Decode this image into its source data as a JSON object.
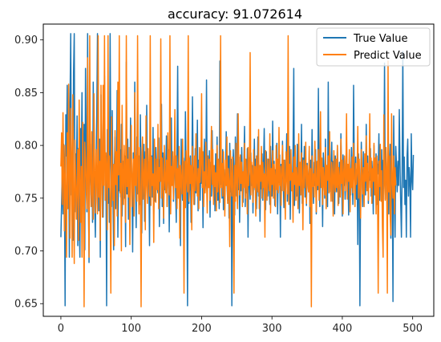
{
  "chart_data": {
    "type": "line",
    "title": "accuracy: 91.072614",
    "xlabel": "",
    "ylabel": "",
    "xlim": [
      -25,
      530
    ],
    "ylim": [
      0.638,
      0.915
    ],
    "xticks": [
      0,
      100,
      200,
      300,
      400,
      500
    ],
    "yticks": [
      0.65,
      0.7,
      0.75,
      0.8,
      0.85,
      0.9
    ],
    "ytick_labels": [
      "0.65",
      "0.70",
      "0.75",
      "0.80",
      "0.85",
      "0.90"
    ],
    "grid": false,
    "legend_position": "top-right",
    "series": [
      {
        "name": "True Value",
        "color": "#1f77b4",
        "x_start": 0,
        "x_step": 1,
        "values": [
          0.713,
          0.745,
          0.778,
          0.735,
          0.801,
          0.766,
          0.648,
          0.829,
          0.79,
          0.857,
          0.752,
          0.804,
          0.694,
          0.841,
          0.906,
          0.753,
          0.781,
          0.71,
          0.869,
          0.906,
          0.737,
          0.792,
          0.756,
          0.828,
          0.705,
          0.797,
          0.732,
          0.694,
          0.816,
          0.779,
          0.85,
          0.743,
          0.76,
          0.82,
          0.701,
          0.873,
          0.794,
          0.737,
          0.906,
          0.763,
          0.689,
          0.828,
          0.771,
          0.753,
          0.801,
          0.727,
          0.86,
          0.791,
          0.744,
          0.713,
          0.78,
          0.828,
          0.906,
          0.766,
          0.738,
          0.806,
          0.694,
          0.848,
          0.775,
          0.756,
          0.732,
          0.797,
          0.866,
          0.761,
          0.779,
          0.648,
          0.815,
          0.745,
          0.795,
          0.727,
          0.906,
          0.785,
          0.742,
          0.833,
          0.757,
          0.701,
          0.781,
          0.808,
          0.74,
          0.768,
          0.852,
          0.713,
          0.78,
          0.757,
          0.796,
          0.751,
          0.82,
          0.733,
          0.769,
          0.785,
          0.75,
          0.79,
          0.704,
          0.879,
          0.754,
          0.806,
          0.73,
          0.772,
          0.747,
          0.826,
          0.785,
          0.764,
          0.699,
          0.793,
          0.745,
          0.86,
          0.779,
          0.722,
          0.808,
          0.754,
          0.775,
          0.79,
          0.744,
          0.829,
          0.762,
          0.717,
          0.793,
          0.76,
          0.801,
          0.728,
          0.794,
          0.766,
          0.838,
          0.749,
          0.782,
          0.772,
          0.705,
          0.802,
          0.76,
          0.79,
          0.751,
          0.817,
          0.734,
          0.781,
          0.747,
          0.798,
          0.773,
          0.76,
          0.755,
          0.807,
          0.723,
          0.787,
          0.766,
          0.839,
          0.742,
          0.793,
          0.726,
          0.784,
          0.758,
          0.772,
          0.809,
          0.742,
          0.781,
          0.796,
          0.718,
          0.778,
          0.751,
          0.826,
          0.763,
          0.79,
          0.747,
          0.771,
          0.8,
          0.76,
          0.727,
          0.793,
          0.875,
          0.754,
          0.78,
          0.766,
          0.705,
          0.806,
          0.762,
          0.748,
          0.788,
          0.777,
          0.741,
          0.832,
          0.772,
          0.756,
          0.648,
          0.792,
          0.745,
          0.761,
          0.79,
          0.727,
          0.763,
          0.846,
          0.781,
          0.773,
          0.744,
          0.797,
          0.755,
          0.768,
          0.824,
          0.738,
          0.786,
          0.773,
          0.748,
          0.797,
          0.764,
          0.781,
          0.722,
          0.777,
          0.806,
          0.757,
          0.768,
          0.862,
          0.747,
          0.79,
          0.761,
          0.795,
          0.732,
          0.784,
          0.752,
          0.814,
          0.769,
          0.748,
          0.78,
          0.738,
          0.792,
          0.759,
          0.808,
          0.748,
          0.774,
          0.74,
          0.88,
          0.763,
          0.781,
          0.75,
          0.796,
          0.739,
          0.777,
          0.759,
          0.769,
          0.813,
          0.765,
          0.748,
          0.79,
          0.731,
          0.802,
          0.756,
          0.787,
          0.648,
          0.761,
          0.796,
          0.773,
          0.734,
          0.808,
          0.779,
          0.752,
          0.83,
          0.758,
          0.789,
          0.727,
          0.771,
          0.757,
          0.798,
          0.764,
          0.746,
          0.778,
          0.818,
          0.742,
          0.783,
          0.755,
          0.797,
          0.713,
          0.788,
          0.767,
          0.749,
          0.793,
          0.762,
          0.781,
          0.736,
          0.769,
          0.806,
          0.758,
          0.787,
          0.74,
          0.77,
          0.808,
          0.752,
          0.781,
          0.728,
          0.768,
          0.759,
          0.792,
          0.748,
          0.781,
          0.816,
          0.764,
          0.739,
          0.794,
          0.772,
          0.752,
          0.787,
          0.76,
          0.744,
          0.799,
          0.775,
          0.752,
          0.823,
          0.767,
          0.785,
          0.743,
          0.777,
          0.76,
          0.802,
          0.735,
          0.775,
          0.765,
          0.791,
          0.713,
          0.782,
          0.757,
          0.804,
          0.768,
          0.741,
          0.786,
          0.762,
          0.778,
          0.811,
          0.747,
          0.778,
          0.759,
          0.799,
          0.73,
          0.779,
          0.768,
          0.757,
          0.796,
          0.873,
          0.743,
          0.778,
          0.768,
          0.752,
          0.801,
          0.76,
          0.783,
          0.736,
          0.774,
          0.764,
          0.82,
          0.745,
          0.788,
          0.761,
          0.799,
          0.751,
          0.776,
          0.743,
          0.783,
          0.768,
          0.756,
          0.795,
          0.726,
          0.786,
          0.757,
          0.815,
          0.768,
          0.745,
          0.784,
          0.762,
          0.796,
          0.735,
          0.778,
          0.758,
          0.854,
          0.768,
          0.742,
          0.789,
          0.764,
          0.776,
          0.723,
          0.793,
          0.771,
          0.75,
          0.806,
          0.762,
          0.781,
          0.742,
          0.86,
          0.764,
          0.789,
          0.756,
          0.775,
          0.803,
          0.747,
          0.785,
          0.762,
          0.735,
          0.79,
          0.77,
          0.756,
          0.8,
          0.768,
          0.745,
          0.784,
          0.757,
          0.811,
          0.772,
          0.733,
          0.791,
          0.762,
          0.782,
          0.749,
          0.776,
          0.808,
          0.756,
          0.78,
          0.734,
          0.787,
          0.765,
          0.753,
          0.798,
          0.772,
          0.744,
          0.857,
          0.783,
          0.762,
          0.789,
          0.749,
          0.777,
          0.706,
          0.792,
          0.767,
          0.648,
          0.761,
          0.803,
          0.774,
          0.742,
          0.794,
          0.766,
          0.78,
          0.753,
          0.82,
          0.76,
          0.79,
          0.745,
          0.775,
          0.767,
          0.797,
          0.752,
          0.785,
          0.771,
          0.735,
          0.8,
          0.768,
          0.757,
          0.792,
          0.744,
          0.782,
          0.773,
          0.811,
          0.748,
          0.778,
          0.762,
          0.796,
          0.735,
          0.786,
          0.766,
          0.878,
          0.749,
          0.78,
          0.767,
          0.757,
          0.798,
          0.735,
          0.775,
          0.801,
          0.712,
          0.791,
          0.763,
          0.652,
          0.828,
          0.771,
          0.713,
          0.799,
          0.781,
          0.756,
          0.785,
          0.762,
          0.834,
          0.782,
          0.745,
          0.713,
          0.775,
          0.889,
          0.76,
          0.789,
          0.744,
          0.767,
          0.713,
          0.79,
          0.806,
          0.752,
          0.779,
          0.767,
          0.713,
          0.811,
          0.768,
          0.758,
          0.791
        ]
      },
      {
        "name": "Predict Value",
        "color": "#ff7f0e",
        "x_start": 0,
        "x_step": 1,
        "values": [
          0.78,
          0.812,
          0.744,
          0.831,
          0.769,
          0.719,
          0.8,
          0.755,
          0.694,
          0.812,
          0.74,
          0.858,
          0.766,
          0.712,
          0.835,
          0.789,
          0.694,
          0.848,
          0.747,
          0.688,
          0.805,
          0.771,
          0.73,
          0.76,
          0.796,
          0.71,
          0.843,
          0.769,
          0.727,
          0.78,
          0.694,
          0.822,
          0.755,
          0.647,
          0.803,
          0.786,
          0.758,
          0.74,
          0.883,
          0.757,
          0.694,
          0.904,
          0.776,
          0.742,
          0.813,
          0.753,
          0.73,
          0.849,
          0.773,
          0.736,
          0.796,
          0.768,
          0.735,
          0.904,
          0.751,
          0.785,
          0.71,
          0.857,
          0.774,
          0.732,
          0.857,
          0.762,
          0.904,
          0.748,
          0.793,
          0.776,
          0.72,
          0.904,
          0.76,
          0.79,
          0.742,
          0.66,
          0.827,
          0.771,
          0.748,
          0.782,
          0.705,
          0.814,
          0.763,
          0.794,
          0.733,
          0.86,
          0.772,
          0.904,
          0.755,
          0.783,
          0.7,
          0.838,
          0.768,
          0.744,
          0.8,
          0.768,
          0.727,
          0.904,
          0.761,
          0.787,
          0.751,
          0.798,
          0.706,
          0.776,
          0.819,
          0.742,
          0.765,
          0.787,
          0.733,
          0.85,
          0.762,
          0.79,
          0.747,
          0.904,
          0.77,
          0.735,
          0.798,
          0.758,
          0.647,
          0.781,
          0.808,
          0.749,
          0.77,
          0.787,
          0.72,
          0.828,
          0.764,
          0.745,
          0.797,
          0.772,
          0.752,
          0.904,
          0.743,
          0.789,
          0.762,
          0.773,
          0.708,
          0.806,
          0.768,
          0.746,
          0.787,
          0.758,
          0.82,
          0.74,
          0.779,
          0.766,
          0.901,
          0.75,
          0.788,
          0.764,
          0.731,
          0.8,
          0.771,
          0.755,
          0.786,
          0.742,
          0.812,
          0.767,
          0.753,
          0.904,
          0.735,
          0.78,
          0.762,
          0.794,
          0.749,
          0.774,
          0.834,
          0.76,
          0.79,
          0.74,
          0.778,
          0.75,
          0.799,
          0.712,
          0.781,
          0.766,
          0.754,
          0.806,
          0.77,
          0.66,
          0.785,
          0.741,
          0.795,
          0.767,
          0.756,
          0.904,
          0.747,
          0.788,
          0.764,
          0.781,
          0.72,
          0.799,
          0.769,
          0.744,
          0.79,
          0.757,
          0.811,
          0.767,
          0.752,
          0.778,
          0.74,
          0.798,
          0.765,
          0.782,
          0.849,
          0.76,
          0.794,
          0.742,
          0.775,
          0.755,
          0.803,
          0.768,
          0.736,
          0.79,
          0.76,
          0.787,
          0.748,
          0.778,
          0.818,
          0.763,
          0.796,
          0.744,
          0.781,
          0.761,
          0.774,
          0.738,
          0.8,
          0.756,
          0.787,
          0.768,
          0.746,
          0.904,
          0.76,
          0.783,
          0.752,
          0.794,
          0.769,
          0.733,
          0.786,
          0.762,
          0.808,
          0.745,
          0.778,
          0.766,
          0.704,
          0.795,
          0.769,
          0.752,
          0.789,
          0.76,
          0.66,
          0.781,
          0.747,
          0.802,
          0.766,
          0.74,
          0.83,
          0.772,
          0.753,
          0.791,
          0.764,
          0.784,
          0.742,
          0.775,
          0.76,
          0.802,
          0.75,
          0.787,
          0.767,
          0.735,
          0.798,
          0.762,
          0.778,
          0.888,
          0.753,
          0.784,
          0.768,
          0.746,
          0.796,
          0.76,
          0.78,
          0.733,
          0.79,
          0.768,
          0.756,
          0.815,
          0.74,
          0.781,
          0.766,
          0.799,
          0.75,
          0.784,
          0.76,
          0.773,
          0.713,
          0.795,
          0.766,
          0.748,
          0.787,
          0.769,
          0.757,
          0.811,
          0.736,
          0.778,
          0.763,
          0.795,
          0.75,
          0.782,
          0.769,
          0.742,
          0.8,
          0.758,
          0.787,
          0.755,
          0.817,
          0.762,
          0.78,
          0.743,
          0.773,
          0.8,
          0.757,
          0.786,
          0.765,
          0.73,
          0.794,
          0.77,
          0.754,
          0.904,
          0.744,
          0.782,
          0.767,
          0.796,
          0.757,
          0.774,
          0.727,
          0.789,
          0.763,
          0.8,
          0.748,
          0.779,
          0.768,
          0.74,
          0.811,
          0.762,
          0.784,
          0.753,
          0.793,
          0.767,
          0.72,
          0.786,
          0.76,
          0.774,
          0.803,
          0.745,
          0.781,
          0.766,
          0.756,
          0.799,
          0.742,
          0.778,
          0.647,
          0.79,
          0.761,
          0.773,
          0.751,
          0.804,
          0.767,
          0.737,
          0.785,
          0.762,
          0.796,
          0.748,
          0.772,
          0.832,
          0.76,
          0.788,
          0.744,
          0.779,
          0.766,
          0.753,
          0.798,
          0.74,
          0.781,
          0.767,
          0.79,
          0.755,
          0.813,
          0.762,
          0.747,
          0.784,
          0.771,
          0.733,
          0.795,
          0.766,
          0.756,
          0.787,
          0.76,
          0.8,
          0.743,
          0.779,
          0.768,
          0.751,
          0.806,
          0.764,
          0.786,
          0.735,
          0.775,
          0.79,
          0.757,
          0.768,
          0.83,
          0.749,
          0.782,
          0.766,
          0.796,
          0.737,
          0.778,
          0.76,
          0.789,
          0.755,
          0.802,
          0.768,
          0.742,
          0.783,
          0.763,
          0.774,
          0.818,
          0.75,
          0.787,
          0.76,
          0.731,
          0.796,
          0.771,
          0.754,
          0.779,
          0.742,
          0.792,
          0.766,
          0.809,
          0.757,
          0.783,
          0.748,
          0.772,
          0.83,
          0.76,
          0.788,
          0.745,
          0.778,
          0.766,
          0.802,
          0.753,
          0.788,
          0.735,
          0.79,
          0.77,
          0.66,
          0.785,
          0.761,
          0.801,
          0.747,
          0.776,
          0.723,
          0.694,
          0.829,
          0.766,
          0.748,
          0.798,
          0.775,
          0.66,
          0.88,
          0.756,
          0.79,
          0.734,
          0.715,
          0.83,
          0.766,
          0.75,
          0.79,
          0.735,
          0.779,
          0.762
        ]
      }
    ]
  }
}
